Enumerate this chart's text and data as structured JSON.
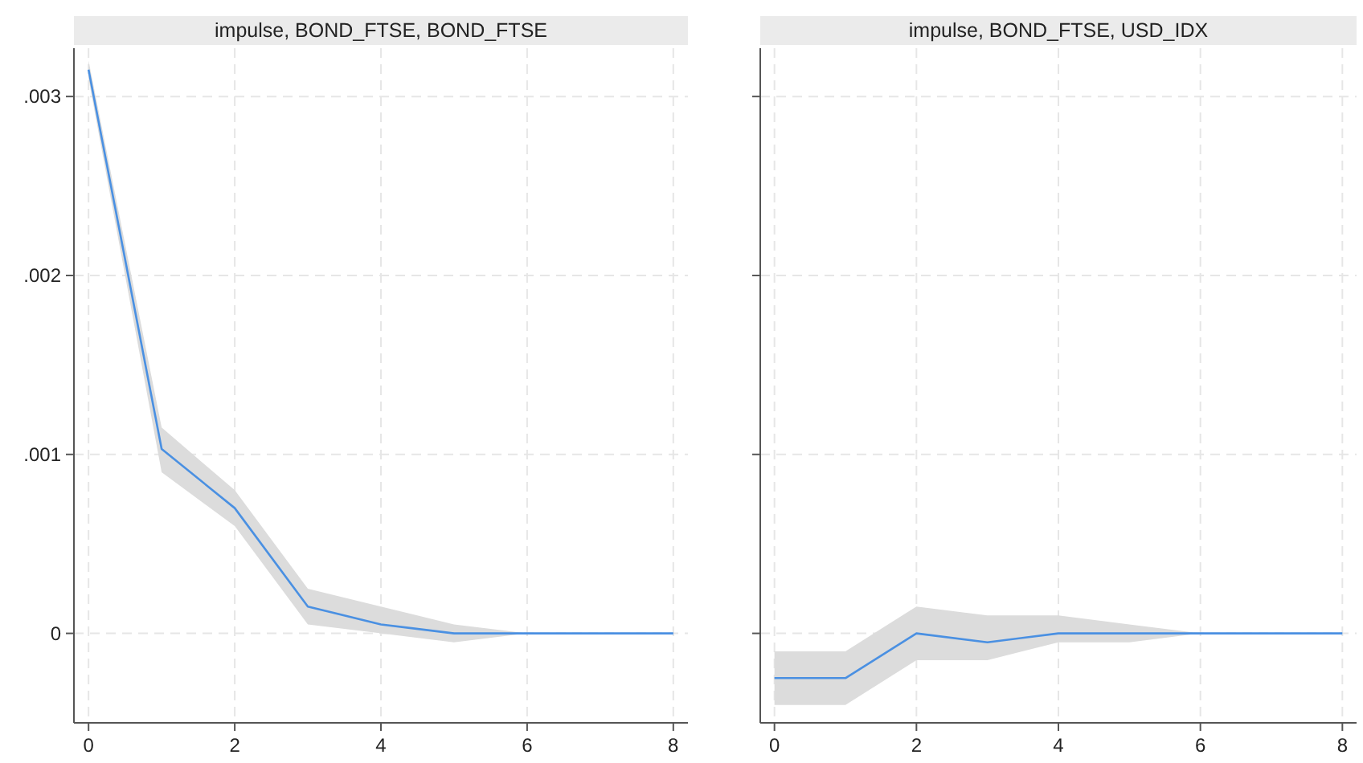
{
  "chart_data": [
    {
      "type": "line",
      "title": "impulse, BOND_FTSE, BOND_FTSE",
      "x": [
        0,
        1,
        2,
        3,
        4,
        5,
        6,
        7,
        8
      ],
      "xlim": [
        -0.2,
        8.2
      ],
      "xticks": [
        0,
        2,
        4,
        6,
        8
      ],
      "ylim": [
        -0.0005,
        0.00327
      ],
      "yticks": [
        {
          "value": 0,
          "label": "0"
        },
        {
          "value": 0.001,
          "label": ".001"
        },
        {
          "value": 0.002,
          "label": ".002"
        },
        {
          "value": 0.003,
          "label": ".003"
        }
      ],
      "grid": true,
      "series": [
        {
          "color": "#4a90e2",
          "values": [
            0.00315,
            0.00103,
            0.0007,
            0.00015,
            5e-05,
            0,
            0,
            0,
            0
          ],
          "lower": [
            0.0031,
            0.0009,
            0.0006,
            5e-05,
            0,
            -5e-05,
            0,
            0,
            0
          ],
          "upper": [
            0.0032,
            0.00115,
            0.0008,
            0.00025,
            0.00015,
            5e-05,
            0,
            0,
            0
          ]
        }
      ]
    },
    {
      "type": "line",
      "title": "impulse, BOND_FTSE, USD_IDX",
      "x": [
        0,
        1,
        2,
        3,
        4,
        5,
        6,
        7,
        8
      ],
      "xlim": [
        -0.2,
        8.2
      ],
      "xticks": [
        0,
        2,
        4,
        6,
        8
      ],
      "ylim": [
        -0.0005,
        0.00327
      ],
      "yticks": [
        {
          "value": 0,
          "label": null
        },
        {
          "value": 0.001,
          "label": null
        },
        {
          "value": 0.002,
          "label": null
        },
        {
          "value": 0.003,
          "label": null
        }
      ],
      "grid": true,
      "tick_labels": "x",
      "series": [
        {
          "color": "#4a90e2",
          "values": [
            -0.00025,
            -0.00025,
            0,
            -5e-05,
            0,
            0,
            0,
            0,
            0
          ],
          "lower": [
            -0.0004,
            -0.0004,
            -0.00015,
            -0.00015,
            -5e-05,
            -5e-05,
            0,
            0,
            0
          ],
          "upper": [
            -0.0001,
            -0.0001,
            0.00015,
            0.0001,
            0.0001,
            5e-05,
            0,
            0,
            0
          ]
        }
      ]
    }
  ]
}
